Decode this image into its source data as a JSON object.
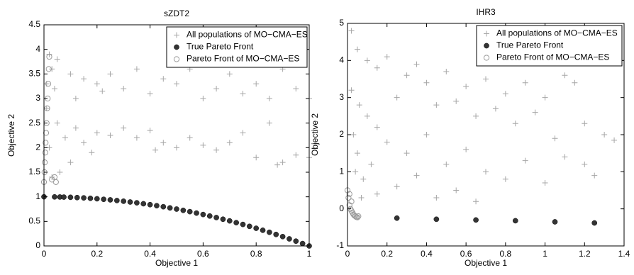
{
  "chart_data": [
    {
      "type": "scatter",
      "title": "sZDT2",
      "x_label": "Objective 1",
      "y_label": "Objective 2",
      "xlim": [
        0,
        1
      ],
      "ylim": [
        0,
        4.5
      ],
      "xticks": [
        0,
        0.2,
        0.4,
        0.6,
        0.8,
        1
      ],
      "yticks": [
        0,
        0.5,
        1,
        1.5,
        2,
        2.5,
        3,
        3.5,
        4,
        4.5
      ],
      "legend": "upper right",
      "series": [
        {
          "name": "All populations of MO−CMA−ES",
          "color": "#a6a6a6",
          "marker": "plus",
          "x": [
            0.02,
            0.05,
            0.03,
            0.1,
            0.15,
            0.2,
            0.25,
            0.3,
            0.35,
            0.4,
            0.45,
            0.5,
            0.55,
            0.6,
            0.65,
            0.7,
            0.75,
            0.8,
            0.85,
            0.9,
            0.95,
            1.0,
            0.12,
            0.22,
            0.05,
            0.08,
            0.12,
            0.15,
            0.2,
            0.25,
            0.3,
            0.35,
            0.4,
            0.45,
            0.5,
            0.55,
            0.6,
            0.65,
            0.7,
            0.75,
            0.8,
            0.85,
            0.9,
            0.95,
            1.0,
            0.06,
            0.1,
            0.03,
            0.18,
            0.42,
            0.88,
            0.01,
            0.01,
            0.02,
            0.04
          ],
          "values": [
            3.9,
            3.8,
            3.6,
            3.5,
            3.4,
            3.3,
            3.5,
            3.2,
            3.6,
            3.1,
            3.4,
            3.3,
            3.6,
            3.0,
            3.2,
            3.5,
            3.1,
            3.3,
            3.0,
            3.6,
            3.2,
            3.0,
            3.0,
            3.15,
            2.5,
            2.2,
            2.4,
            2.1,
            2.3,
            2.25,
            2.4,
            2.2,
            2.35,
            2.1,
            2.0,
            2.2,
            2.05,
            1.95,
            2.1,
            2.3,
            1.8,
            2.5,
            1.7,
            1.85,
            1.8,
            1.5,
            1.7,
            1.4,
            1.9,
            1.95,
            1.65,
            2.8,
            3.3,
            2.0,
            3.2
          ]
        },
        {
          "name": "True Pareto Front",
          "color": "#333333",
          "marker": "dot",
          "x": [
            0,
            0.04,
            0.06,
            0.075,
            0.1,
            0.125,
            0.15,
            0.175,
            0.2,
            0.225,
            0.25,
            0.275,
            0.3,
            0.325,
            0.35,
            0.375,
            0.4,
            0.425,
            0.45,
            0.475,
            0.5,
            0.525,
            0.55,
            0.575,
            0.6,
            0.625,
            0.65,
            0.675,
            0.7,
            0.725,
            0.75,
            0.775,
            0.8,
            0.825,
            0.85,
            0.875,
            0.9,
            0.925,
            0.95,
            0.975,
            1
          ],
          "values": [
            1,
            0.998,
            0.996,
            0.994,
            0.99,
            0.984,
            0.978,
            0.969,
            0.96,
            0.949,
            0.938,
            0.924,
            0.91,
            0.894,
            0.878,
            0.859,
            0.84,
            0.819,
            0.798,
            0.774,
            0.75,
            0.724,
            0.698,
            0.669,
            0.64,
            0.609,
            0.578,
            0.544,
            0.51,
            0.474,
            0.438,
            0.399,
            0.36,
            0.319,
            0.278,
            0.234,
            0.19,
            0.144,
            0.098,
            0.049,
            0
          ]
        },
        {
          "name": "Pareto Front of MO−CMA−ES",
          "color": "#999999",
          "marker": "circle",
          "x": [
            0,
            0.002,
            0.003,
            0.005,
            0.006,
            0.008,
            0.01,
            0.012,
            0.014,
            0.016,
            0.018,
            0.02,
            0.03,
            0.04,
            0.045
          ],
          "values": [
            1.3,
            1.5,
            1.7,
            1.9,
            2.1,
            2.3,
            2.5,
            2.8,
            3.0,
            3.3,
            3.6,
            3.85,
            1.35,
            1.4,
            1.3
          ]
        }
      ]
    },
    {
      "type": "scatter",
      "title": "IHR3",
      "x_label": "Objective 1",
      "y_label": "Objective 2",
      "xlim": [
        0,
        1.4
      ],
      "ylim": [
        -1,
        5
      ],
      "xticks": [
        0,
        0.2,
        0.4,
        0.6,
        0.8,
        1,
        1.2,
        1.4
      ],
      "yticks": [
        -1,
        0,
        1,
        2,
        3,
        4,
        5
      ],
      "legend": "upper right",
      "series": [
        {
          "name": "All populations of MO−CMA−ES",
          "color": "#a6a6a6",
          "marker": "plus",
          "x": [
            0.02,
            0.05,
            0.1,
            0.15,
            0.2,
            0.3,
            0.35,
            0.4,
            0.5,
            0.6,
            0.7,
            0.8,
            0.9,
            1.0,
            1.1,
            1.15,
            0.25,
            0.45,
            0.55,
            0.65,
            0.75,
            0.85,
            0.95,
            1.05,
            1.2,
            1.3,
            1.35,
            0.1,
            0.15,
            0.2,
            0.3,
            0.4,
            0.5,
            0.6,
            0.7,
            0.8,
            0.9,
            1.0,
            1.1,
            1.2,
            1.25,
            0.25,
            0.35,
            0.45,
            0.55,
            0.65,
            0.15,
            0.08,
            0.05,
            0.03,
            0.06,
            0.04,
            0.07,
            0.02,
            0.12
          ],
          "values": [
            4.8,
            4.3,
            4.0,
            3.8,
            4.1,
            3.6,
            3.9,
            3.4,
            3.7,
            3.3,
            3.5,
            3.1,
            3.4,
            3.0,
            3.6,
            3.4,
            3.0,
            2.8,
            2.9,
            2.5,
            2.7,
            2.3,
            2.6,
            1.9,
            2.3,
            2.0,
            1.85,
            2.5,
            2.2,
            1.8,
            1.5,
            2.0,
            1.2,
            1.6,
            1.0,
            0.8,
            1.3,
            0.7,
            1.4,
            1.2,
            0.9,
            0.6,
            0.9,
            0.3,
            0.5,
            0.2,
            0.4,
            0.8,
            1.5,
            2.0,
            2.8,
            1.0,
            0.3,
            3.2,
            1.2
          ]
        },
        {
          "name": "True Pareto Front",
          "color": "#333333",
          "marker": "dot",
          "x": [
            0.25,
            0.45,
            0.65,
            0.85,
            1.05,
            1.25
          ],
          "values": [
            -0.25,
            -0.28,
            -0.3,
            -0.32,
            -0.35,
            -0.38
          ]
        },
        {
          "name": "Pareto Front of MO−CMA−ES",
          "color": "#999999",
          "marker": "circle",
          "x": [
            0,
            0.005,
            0.01,
            0.015,
            0.02,
            0.025,
            0.03,
            0.035,
            0.04,
            0.045,
            0.05,
            0.055,
            0.01,
            0.02
          ],
          "values": [
            0.5,
            0.3,
            0.1,
            0,
            -0.05,
            -0.1,
            -0.15,
            -0.18,
            -0.2,
            -0.22,
            -0.23,
            -0.2,
            0.4,
            0.2
          ]
        }
      ]
    }
  ]
}
